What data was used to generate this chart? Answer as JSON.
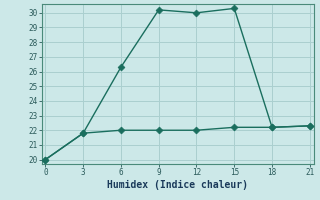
{
  "title": "",
  "xlabel": "Humidex (Indice chaleur)",
  "background_color": "#cce8e8",
  "grid_color": "#aacfcf",
  "line_color": "#1a6e5e",
  "x_line1": [
    0,
    3,
    6,
    9,
    12,
    15,
    18,
    21
  ],
  "y_line1": [
    20,
    21.8,
    26.3,
    30.2,
    30.0,
    30.3,
    22.2,
    22.3
  ],
  "x_line2": [
    0,
    3,
    6,
    9,
    12,
    15,
    18,
    21
  ],
  "y_line2": [
    20,
    21.8,
    22.0,
    22.0,
    22.0,
    22.2,
    22.2,
    22.3
  ],
  "xlim": [
    -0.3,
    21.3
  ],
  "ylim": [
    19.7,
    30.6
  ],
  "xticks": [
    0,
    3,
    6,
    9,
    12,
    15,
    18,
    21
  ],
  "yticks": [
    20,
    21,
    22,
    23,
    24,
    25,
    26,
    27,
    28,
    29,
    30
  ],
  "markersize": 3.5,
  "linewidth": 1.0,
  "tick_color": "#2a5a5a",
  "xlabel_color": "#1a3a5a",
  "xlabel_fontsize": 7
}
